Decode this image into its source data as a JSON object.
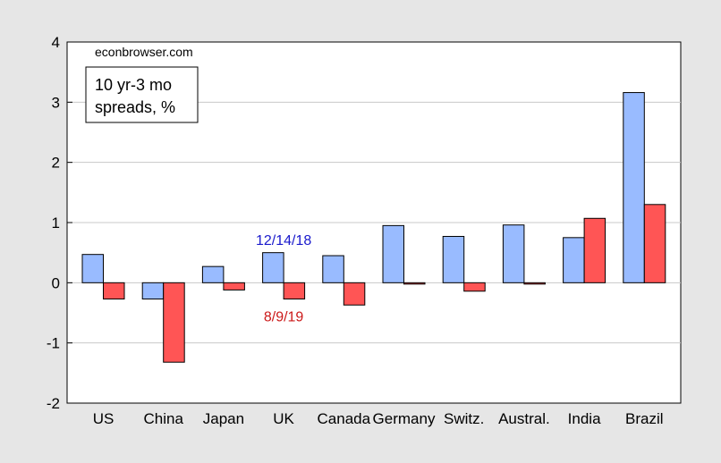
{
  "source_label": "econbrowser.com",
  "title_lines": [
    "10 yr-3 mo",
    "spreads, %"
  ],
  "annotations": [
    {
      "text": "12/14/18",
      "color": "#1a1acc",
      "category": "UK",
      "value": 0.72
    },
    {
      "text": "8/9/19",
      "color": "#cc1a1a",
      "category": "UK",
      "value": -0.55
    }
  ],
  "colors": {
    "series1": "#99bbff",
    "series2": "#ff5555",
    "background": "#e6e6e6",
    "plot": "#ffffff",
    "grid": "#c8c8c8"
  },
  "chart_data": {
    "type": "bar",
    "categories": [
      "US",
      "China",
      "Japan",
      "UK",
      "Canada",
      "Germany",
      "Switz.",
      "Austral.",
      "India",
      "Brazil"
    ],
    "series": [
      {
        "values": [
          0.47,
          -0.27,
          0.27,
          0.5,
          0.45,
          0.95,
          0.77,
          0.96,
          0.75,
          3.16
        ]
      },
      {
        "values": [
          -0.27,
          -1.32,
          -0.12,
          -0.27,
          -0.37,
          -0.02,
          -0.14,
          -0.02,
          1.07,
          1.3
        ]
      }
    ],
    "ylim": [
      -2,
      4
    ],
    "yticks": [
      -2,
      -1,
      0,
      1,
      2,
      3,
      4
    ],
    "grid": true,
    "xlabel": "",
    "ylabel": ""
  }
}
